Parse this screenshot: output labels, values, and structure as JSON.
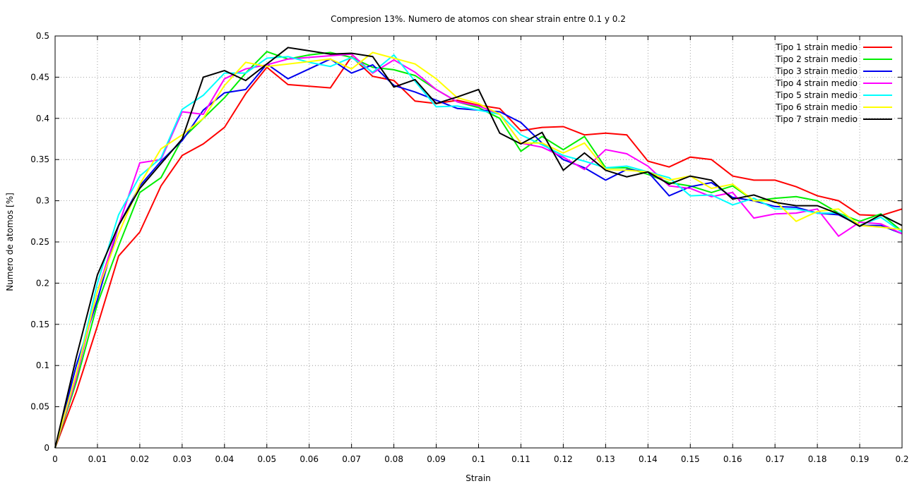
{
  "chart_data": {
    "type": "line",
    "title": "Compresion 13%. Numero de atomos con shear strain entre 0.1 y 0.2",
    "xlabel": "Strain",
    "ylabel": "Numero de atomos [%]",
    "xlim": [
      0,
      0.2
    ],
    "ylim": [
      0,
      0.5
    ],
    "grid": true,
    "legend_position": "top-right",
    "x_ticks": [
      "0",
      "0.01",
      "0.02",
      "0.03",
      "0.04",
      "0.05",
      "0.06",
      "0.07",
      "0.08",
      "0.09",
      "0.1",
      "0.11",
      "0.12",
      "0.13",
      "0.14",
      "0.15",
      "0.16",
      "0.17",
      "0.18",
      "0.19",
      "0.2"
    ],
    "y_ticks": [
      "0",
      "0.05",
      "0.1",
      "0.15",
      "0.2",
      "0.25",
      "0.3",
      "0.35",
      "0.4",
      "0.45",
      "0.5"
    ],
    "x": [
      0,
      0.005,
      0.01,
      0.015,
      0.02,
      0.025,
      0.03,
      0.035,
      0.04,
      0.045,
      0.05,
      0.055,
      0.06,
      0.065,
      0.07,
      0.075,
      0.08,
      0.085,
      0.09,
      0.095,
      0.1,
      0.105,
      0.11,
      0.115,
      0.12,
      0.125,
      0.13,
      0.135,
      0.14,
      0.145,
      0.15,
      0.155,
      0.16,
      0.165,
      0.17,
      0.175,
      0.18,
      0.185,
      0.19,
      0.195,
      0.2
    ],
    "series": [
      {
        "name": "Tipo 1 strain medio",
        "color": "#ff0000",
        "values": [
          0,
          0.068,
          0.148,
          0.233,
          0.262,
          0.318,
          0.355,
          0.369,
          0.389,
          0.43,
          0.462,
          0.441,
          0.439,
          0.437,
          0.475,
          0.451,
          0.446,
          0.421,
          0.418,
          0.422,
          0.416,
          0.412,
          0.385,
          0.389,
          0.39,
          0.38,
          0.382,
          0.38,
          0.348,
          0.341,
          0.353,
          0.35,
          0.33,
          0.325,
          0.325,
          0.317,
          0.306,
          0.3,
          0.283,
          0.282,
          0.29
        ]
      },
      {
        "name": "Tipo 2 strain medio",
        "color": "#00ee00",
        "values": [
          0,
          0.08,
          0.175,
          0.245,
          0.31,
          0.328,
          0.375,
          0.4,
          0.425,
          0.455,
          0.481,
          0.472,
          0.477,
          0.48,
          0.474,
          0.462,
          0.459,
          0.452,
          0.435,
          0.42,
          0.413,
          0.4,
          0.36,
          0.378,
          0.362,
          0.378,
          0.34,
          0.34,
          0.332,
          0.322,
          0.318,
          0.31,
          0.318,
          0.3,
          0.303,
          0.305,
          0.3,
          0.285,
          0.275,
          0.284,
          0.263
        ]
      },
      {
        "name": "Tipo 3 strain medio",
        "color": "#0000ee",
        "values": [
          0,
          0.1,
          0.18,
          0.27,
          0.318,
          0.348,
          0.373,
          0.41,
          0.431,
          0.435,
          0.466,
          0.448,
          0.46,
          0.472,
          0.455,
          0.465,
          0.44,
          0.432,
          0.422,
          0.412,
          0.41,
          0.408,
          0.395,
          0.37,
          0.35,
          0.34,
          0.325,
          0.338,
          0.335,
          0.306,
          0.317,
          0.322,
          0.304,
          0.3,
          0.293,
          0.292,
          0.285,
          0.283,
          0.27,
          0.27,
          0.26
        ]
      },
      {
        "name": "Tipo 4 strain medio",
        "color": "#ff00ff",
        "values": [
          0,
          0.085,
          0.19,
          0.27,
          0.346,
          0.35,
          0.408,
          0.405,
          0.448,
          0.46,
          0.465,
          0.472,
          0.474,
          0.476,
          0.478,
          0.455,
          0.471,
          0.456,
          0.435,
          0.42,
          0.415,
          0.405,
          0.37,
          0.365,
          0.353,
          0.338,
          0.362,
          0.357,
          0.342,
          0.318,
          0.315,
          0.305,
          0.31,
          0.279,
          0.284,
          0.285,
          0.29,
          0.257,
          0.274,
          0.272,
          0.26
        ]
      },
      {
        "name": "Tipo 5 strain medio",
        "color": "#00ffff",
        "values": [
          0,
          0.09,
          0.2,
          0.283,
          0.33,
          0.352,
          0.411,
          0.428,
          0.455,
          0.455,
          0.473,
          0.475,
          0.468,
          0.463,
          0.474,
          0.456,
          0.477,
          0.445,
          0.414,
          0.415,
          0.41,
          0.405,
          0.38,
          0.368,
          0.355,
          0.348,
          0.34,
          0.342,
          0.335,
          0.328,
          0.306,
          0.307,
          0.295,
          0.303,
          0.29,
          0.29,
          0.285,
          0.285,
          0.27,
          0.28,
          0.262
        ]
      },
      {
        "name": "Tipo 6 strain medio",
        "color": "#ffff00",
        "values": [
          0,
          0.09,
          0.19,
          0.26,
          0.32,
          0.363,
          0.38,
          0.4,
          0.44,
          0.468,
          0.463,
          0.466,
          0.469,
          0.472,
          0.46,
          0.48,
          0.473,
          0.466,
          0.448,
          0.425,
          0.418,
          0.405,
          0.37,
          0.37,
          0.358,
          0.37,
          0.338,
          0.337,
          0.335,
          0.325,
          0.33,
          0.315,
          0.32,
          0.3,
          0.3,
          0.275,
          0.287,
          0.29,
          0.27,
          0.268,
          0.265
        ]
      },
      {
        "name": "Tipo 7 strain medio",
        "color": "#000000",
        "values": [
          0,
          0.11,
          0.21,
          0.27,
          0.315,
          0.345,
          0.375,
          0.45,
          0.458,
          0.446,
          0.466,
          0.486,
          0.482,
          0.478,
          0.479,
          0.475,
          0.438,
          0.447,
          0.418,
          0.426,
          0.435,
          0.382,
          0.369,
          0.383,
          0.337,
          0.358,
          0.337,
          0.329,
          0.335,
          0.32,
          0.33,
          0.325,
          0.302,
          0.307,
          0.298,
          0.294,
          0.294,
          0.284,
          0.269,
          0.283,
          0.27
        ]
      }
    ]
  }
}
